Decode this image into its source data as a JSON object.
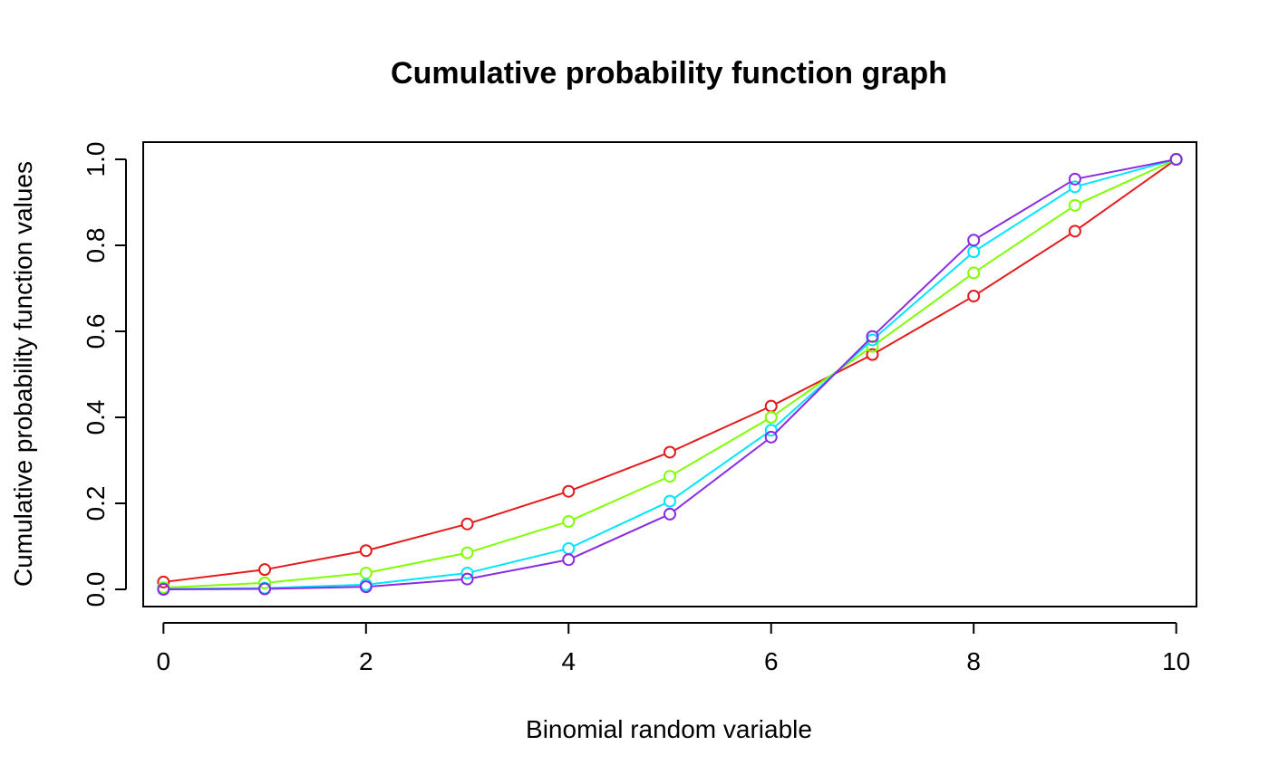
{
  "chart_data": {
    "type": "line",
    "title": "Cumulative probability function graph",
    "xlabel": "Binomial random variable",
    "ylabel": "Cumulative probability function values",
    "x": [
      0,
      1,
      2,
      3,
      4,
      5,
      6,
      7,
      8,
      9,
      10
    ],
    "xlim": [
      -0.2,
      10.2
    ],
    "ylim": [
      -0.04,
      1.04
    ],
    "xticks": [
      0,
      2,
      4,
      6,
      8,
      10
    ],
    "yticks": [
      0.0,
      0.2,
      0.4,
      0.6,
      0.8,
      1.0
    ],
    "xtick_labels": [
      "0",
      "2",
      "4",
      "6",
      "8",
      "10"
    ],
    "ytick_labels": [
      "0.0",
      "0.2",
      "0.4",
      "0.6",
      "0.8",
      "1.0"
    ],
    "grid": false,
    "legend": "none",
    "marker": "open-circle",
    "series": [
      {
        "color": "#e41a1c",
        "values": [
          0.017,
          0.046,
          0.09,
          0.152,
          0.228,
          0.319,
          0.426,
          0.546,
          0.682,
          0.833,
          1.0
        ]
      },
      {
        "color": "#7fff00",
        "values": [
          0.004,
          0.015,
          0.038,
          0.085,
          0.158,
          0.263,
          0.4,
          0.565,
          0.736,
          0.893,
          1.0
        ]
      },
      {
        "color": "#00e5ff",
        "values": [
          0.001,
          0.003,
          0.011,
          0.038,
          0.095,
          0.205,
          0.37,
          0.58,
          0.785,
          0.936,
          1.0
        ]
      },
      {
        "color": "#8a2be2",
        "values": [
          0.0,
          0.001,
          0.006,
          0.024,
          0.069,
          0.175,
          0.354,
          0.588,
          0.812,
          0.954,
          1.0
        ]
      }
    ]
  }
}
